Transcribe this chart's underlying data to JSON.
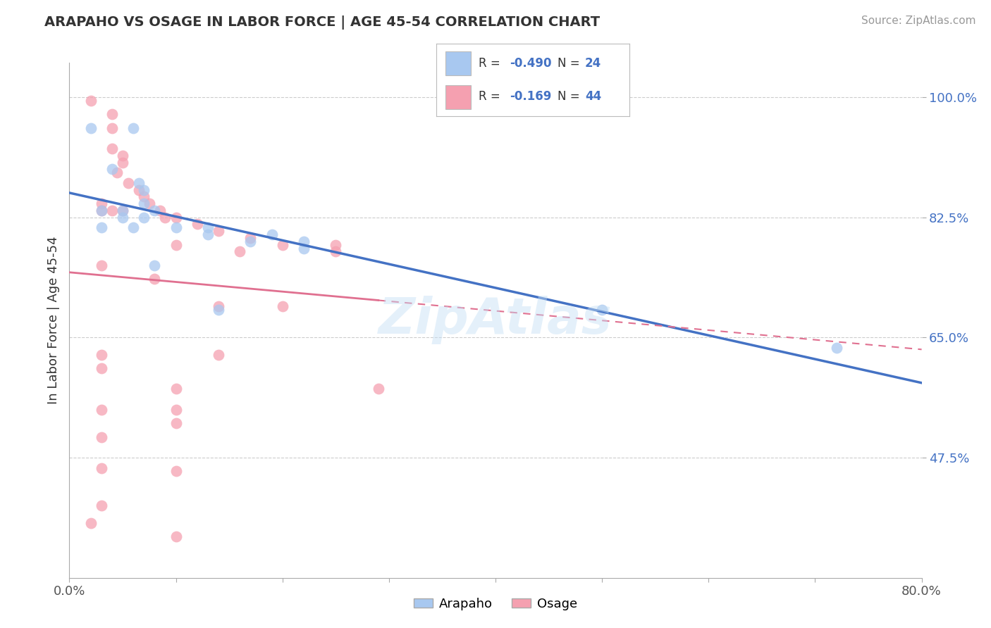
{
  "title": "ARAPAHO VS OSAGE IN LABOR FORCE | AGE 45-54 CORRELATION CHART",
  "source": "Source: ZipAtlas.com",
  "ylabel": "In Labor Force | Age 45-54",
  "xlim": [
    0.0,
    0.8
  ],
  "ylim": [
    0.3,
    1.05
  ],
  "ytick_values": [
    0.475,
    0.65,
    0.825,
    1.0
  ],
  "ytick_labels": [
    "47.5%",
    "65.0%",
    "82.5%",
    "100.0%"
  ],
  "legend_r_arapaho": "-0.490",
  "legend_n_arapaho": "24",
  "legend_r_osage": "-0.169",
  "legend_n_osage": "44",
  "arapaho_color": "#a8c8f0",
  "osage_color": "#f5a0b0",
  "arapaho_line_color": "#4472c4",
  "osage_line_color": "#e07090",
  "watermark": "ZipAtlas",
  "arapaho_points": [
    [
      0.02,
      0.955
    ],
    [
      0.06,
      0.955
    ],
    [
      0.04,
      0.895
    ],
    [
      0.065,
      0.875
    ],
    [
      0.07,
      0.865
    ],
    [
      0.07,
      0.845
    ],
    [
      0.03,
      0.835
    ],
    [
      0.05,
      0.835
    ],
    [
      0.08,
      0.835
    ],
    [
      0.05,
      0.825
    ],
    [
      0.07,
      0.825
    ],
    [
      0.03,
      0.81
    ],
    [
      0.06,
      0.81
    ],
    [
      0.1,
      0.81
    ],
    [
      0.13,
      0.81
    ],
    [
      0.13,
      0.8
    ],
    [
      0.19,
      0.8
    ],
    [
      0.17,
      0.79
    ],
    [
      0.22,
      0.79
    ],
    [
      0.22,
      0.78
    ],
    [
      0.08,
      0.755
    ],
    [
      0.14,
      0.69
    ],
    [
      0.5,
      0.69
    ],
    [
      0.72,
      0.635
    ]
  ],
  "osage_points": [
    [
      0.02,
      0.995
    ],
    [
      0.04,
      0.975
    ],
    [
      0.04,
      0.955
    ],
    [
      0.04,
      0.925
    ],
    [
      0.05,
      0.915
    ],
    [
      0.05,
      0.905
    ],
    [
      0.045,
      0.89
    ],
    [
      0.055,
      0.875
    ],
    [
      0.065,
      0.865
    ],
    [
      0.07,
      0.855
    ],
    [
      0.075,
      0.845
    ],
    [
      0.03,
      0.845
    ],
    [
      0.03,
      0.835
    ],
    [
      0.04,
      0.835
    ],
    [
      0.05,
      0.835
    ],
    [
      0.085,
      0.835
    ],
    [
      0.09,
      0.825
    ],
    [
      0.1,
      0.825
    ],
    [
      0.12,
      0.815
    ],
    [
      0.14,
      0.805
    ],
    [
      0.17,
      0.795
    ],
    [
      0.2,
      0.785
    ],
    [
      0.25,
      0.785
    ],
    [
      0.25,
      0.775
    ],
    [
      0.1,
      0.785
    ],
    [
      0.16,
      0.775
    ],
    [
      0.03,
      0.755
    ],
    [
      0.08,
      0.735
    ],
    [
      0.14,
      0.695
    ],
    [
      0.2,
      0.695
    ],
    [
      0.03,
      0.625
    ],
    [
      0.14,
      0.625
    ],
    [
      0.03,
      0.605
    ],
    [
      0.1,
      0.575
    ],
    [
      0.29,
      0.575
    ],
    [
      0.03,
      0.545
    ],
    [
      0.1,
      0.545
    ],
    [
      0.1,
      0.525
    ],
    [
      0.03,
      0.505
    ],
    [
      0.03,
      0.46
    ],
    [
      0.1,
      0.455
    ],
    [
      0.03,
      0.405
    ],
    [
      0.02,
      0.38
    ],
    [
      0.1,
      0.36
    ]
  ]
}
